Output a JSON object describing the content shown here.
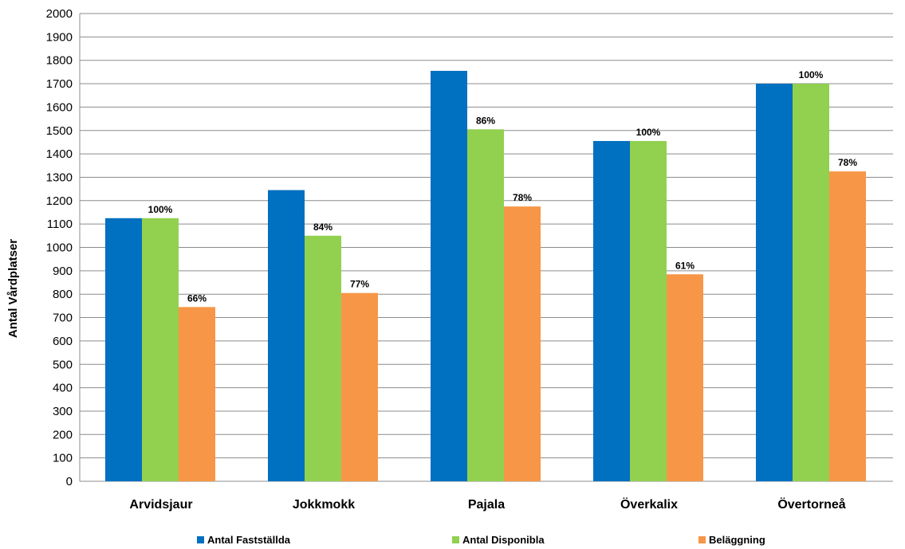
{
  "chart_data": {
    "type": "bar",
    "categories": [
      "Arvidsjaur",
      "Jokkmokk",
      "Pajala",
      "Överkalix",
      "Övertorneå"
    ],
    "series": [
      {
        "name": "Antal Fastställda",
        "color": "#0070C0",
        "values": [
          1125,
          1245,
          1755,
          1455,
          1700
        ],
        "labels": [
          "",
          "",
          "",
          "",
          ""
        ]
      },
      {
        "name": "Antal Disponibla",
        "color": "#92D050",
        "values": [
          1125,
          1050,
          1505,
          1455,
          1700
        ],
        "labels": [
          "100%",
          "84%",
          "86%",
          "100%",
          "100%"
        ]
      },
      {
        "name": "Beläggning",
        "color": "#F79646",
        "values": [
          745,
          805,
          1175,
          885,
          1325
        ],
        "labels": [
          "66%",
          "77%",
          "78%",
          "61%",
          "78%"
        ]
      }
    ],
    "ylabel": "Antal Vårdplatser",
    "xlabel": "",
    "ylim": [
      0,
      2000
    ],
    "ytick_step": 100,
    "grid": true,
    "legend_position": "bottom"
  }
}
